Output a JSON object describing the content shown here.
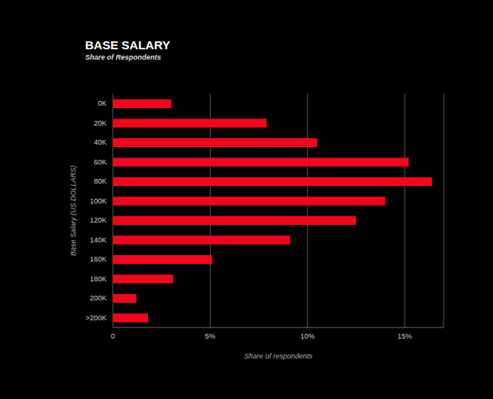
{
  "chart_data": {
    "type": "bar",
    "title": "BASE SALARY",
    "subtitle": "Share of Respondents",
    "x_label": "Share of respondents",
    "y_label": "Base Salary (US DOLLARS)",
    "orientation": "horizontal",
    "categories": [
      "0K",
      "20K",
      "40K",
      "60K",
      "80K",
      "100K",
      "120K",
      "140K",
      "160K",
      "180K",
      "200K",
      ">200K"
    ],
    "values": [
      3.0,
      7.9,
      10.5,
      15.2,
      16.4,
      14.0,
      12.5,
      9.1,
      5.1,
      3.1,
      1.2,
      1.8
    ],
    "color": "#f5051b",
    "xlim": [
      0,
      17
    ],
    "xticks": [
      0,
      {
        "value": 5,
        "label": "5%"
      },
      {
        "value": 10,
        "label": "10%"
      },
      {
        "value": 15,
        "label": "15%"
      }
    ],
    "grid": true
  }
}
